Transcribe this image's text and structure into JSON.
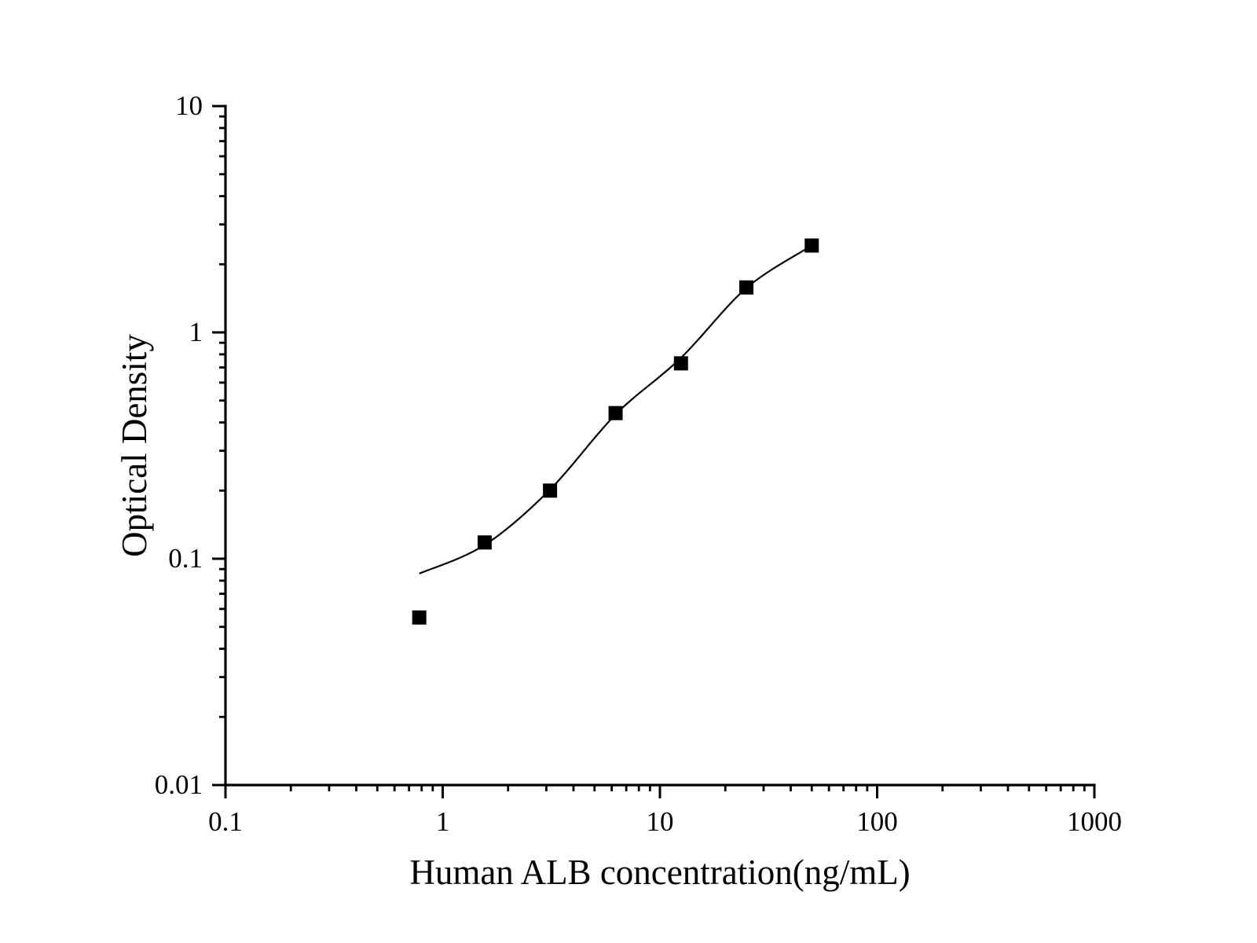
{
  "page": {
    "background_color": "#ffffff",
    "foreground_color": "#000000"
  },
  "chart_data": {
    "type": "scatter",
    "title": "",
    "xlabel": "Human ALB concentration(ng/mL)",
    "ylabel": "Optical Density",
    "x_scale": "log",
    "y_scale": "log",
    "xlim": [
      0.1,
      1000
    ],
    "ylim": [
      0.01,
      10
    ],
    "grid": false,
    "legend": null,
    "x_ticks": {
      "values": [
        0.1,
        1,
        10,
        100,
        1000
      ],
      "labels": [
        "0.1",
        "1",
        "10",
        "100",
        "1000"
      ]
    },
    "y_ticks": {
      "values": [
        0.01,
        0.1,
        1,
        10
      ],
      "labels": [
        "0.01",
        "0.1",
        "1",
        "10"
      ]
    },
    "minor_ticks_log_decades": true,
    "series": [
      {
        "name": "standard-points",
        "marker": "square",
        "marker_size_px": 18,
        "color": "#000000",
        "points": [
          [
            0.78,
            0.055
          ],
          [
            1.56,
            0.118
          ],
          [
            3.12,
            0.2
          ],
          [
            6.25,
            0.44
          ],
          [
            12.5,
            0.73
          ],
          [
            25,
            1.58
          ],
          [
            50,
            2.42
          ]
        ]
      }
    ],
    "fit_curve": {
      "name": "fit-curve",
      "color": "#000000",
      "stroke_width_px": 2.2,
      "points": [
        [
          0.78,
          0.086
        ],
        [
          1.56,
          0.115
        ],
        [
          3.12,
          0.202
        ],
        [
          6.25,
          0.434
        ],
        [
          12.5,
          0.772
        ],
        [
          25,
          1.57
        ],
        [
          50,
          2.42
        ]
      ]
    }
  }
}
